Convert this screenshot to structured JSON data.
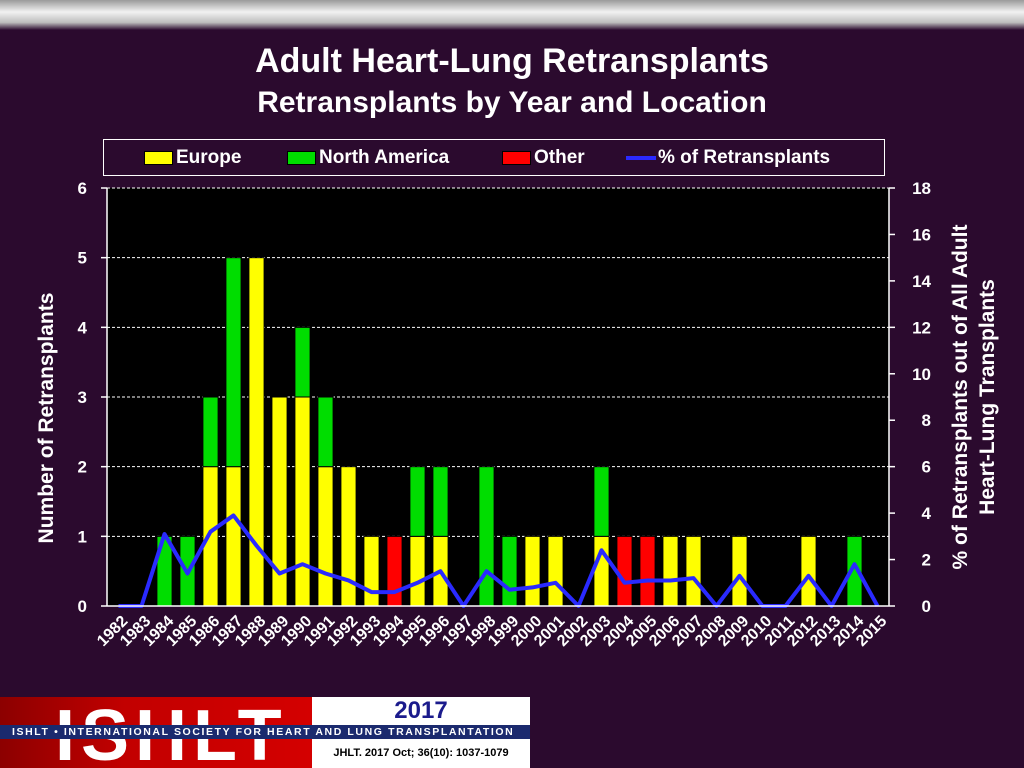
{
  "chart_data": {
    "type": "bar",
    "stacked": true,
    "title": "Adult Heart-Lung Retransplants",
    "subtitle": "Retransplants by Year and Location",
    "ylabel": "Number of Retransplants",
    "y2label_line1": "% of Retransplants out of All Adult",
    "y2label_line2": "Heart-Lung Transplants",
    "ylim": [
      0,
      6
    ],
    "y2lim": [
      0,
      18
    ],
    "yticks": [
      "0",
      "1",
      "2",
      "3",
      "4",
      "5",
      "6"
    ],
    "y2ticks": [
      "0",
      "2",
      "4",
      "6",
      "8",
      "10",
      "12",
      "14",
      "16",
      "18"
    ],
    "grid": true,
    "legend_position": "top",
    "categories": [
      "1982",
      "1983",
      "1984",
      "1985",
      "1986",
      "1987",
      "1988",
      "1989",
      "1990",
      "1991",
      "1992",
      "1993",
      "1994",
      "1995",
      "1996",
      "1997",
      "1998",
      "1999",
      "2000",
      "2001",
      "2002",
      "2003",
      "2004",
      "2005",
      "2006",
      "2007",
      "2008",
      "2009",
      "2010",
      "2011",
      "2012",
      "2013",
      "2014",
      "2015"
    ],
    "series": [
      {
        "name": "Europe",
        "color": "#ffff00",
        "values": [
          0,
          0,
          0,
          0,
          2,
          2,
          5,
          3,
          3,
          2,
          2,
          1,
          0,
          1,
          1,
          0,
          0,
          0,
          1,
          1,
          0,
          1,
          0,
          0,
          1,
          1,
          0,
          1,
          0,
          0,
          1,
          0,
          0,
          0
        ]
      },
      {
        "name": "North America",
        "color": "#00dd00",
        "values": [
          0,
          0,
          1,
          1,
          1,
          3,
          0,
          0,
          1,
          1,
          0,
          0,
          0,
          1,
          1,
          0,
          2,
          1,
          0,
          0,
          0,
          1,
          0,
          0,
          0,
          0,
          0,
          0,
          0,
          0,
          0,
          0,
          1,
          0
        ]
      },
      {
        "name": "Other",
        "color": "#ff0000",
        "values": [
          0,
          0,
          0,
          0,
          0,
          0,
          0,
          0,
          0,
          0,
          0,
          0,
          1,
          0,
          0,
          0,
          0,
          0,
          0,
          0,
          0,
          0,
          1,
          1,
          0,
          0,
          0,
          0,
          0,
          0,
          0,
          0,
          0,
          0
        ]
      }
    ],
    "line_series": {
      "name": "% of Retransplants",
      "color": "#2a2aff",
      "values": [
        0,
        0,
        3.1,
        1.4,
        3.2,
        3.9,
        2.6,
        1.4,
        1.8,
        1.4,
        1.1,
        0.6,
        0.6,
        1.0,
        1.5,
        0,
        1.5,
        0.7,
        0.8,
        1.0,
        0,
        2.4,
        1.0,
        1.1,
        1.1,
        1.2,
        0,
        1.3,
        0,
        0,
        1.3,
        0,
        1.8,
        0
      ]
    }
  },
  "footer": {
    "year": "2017",
    "citation": "JHLT. 2017 Oct; 36(10): 1037-1079",
    "logo_text": "ISHLT",
    "logo_strip_text": "ISHLT • INTERNATIONAL SOCIETY FOR HEART AND LUNG TRANSPLANTATION"
  }
}
